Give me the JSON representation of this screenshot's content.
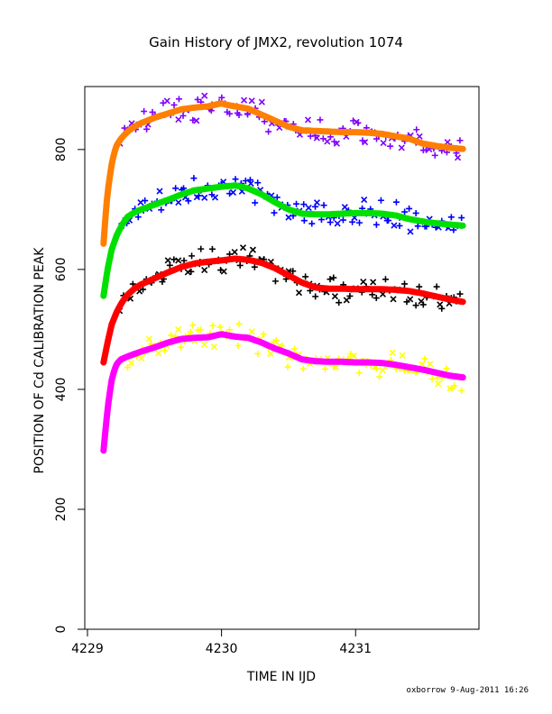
{
  "chart_data": {
    "type": "scatter",
    "title": "Gain History of JMX2, revolution 1074",
    "xlabel": "TIME IN IJD",
    "ylabel": "POSITION OF Cd CALIBRATION PEAK",
    "xlim": [
      4228.98,
      4231.92
    ],
    "ylim": [
      0,
      905
    ],
    "xticks": [
      4229,
      4230,
      4231
    ],
    "xtick_labels": [
      "4229",
      "4230",
      "4231"
    ],
    "yticks": [
      0,
      200,
      400,
      600,
      800
    ],
    "ytick_labels": [
      "0",
      "200",
      "400",
      "600",
      "800"
    ],
    "grid": false,
    "legend": "none",
    "footer": "oxborrow  9-Aug-2011 16:26",
    "series": [
      {
        "color": "#ff7f00",
        "kind": "smoothed-line",
        "x": [
          4229.12,
          4229.14,
          4229.16,
          4229.18,
          4229.2,
          4229.22,
          4229.25,
          4229.3,
          4229.35,
          4229.4,
          4229.5,
          4229.6,
          4229.7,
          4229.8,
          4229.9,
          4230.0,
          4230.05,
          4230.1,
          4230.2,
          4230.3,
          4230.4,
          4230.5,
          4230.6,
          4230.7,
          4230.8,
          4230.9,
          4231.0,
          4231.1,
          4231.2,
          4231.3,
          4231.4,
          4231.5,
          4231.6,
          4231.7,
          4231.8
        ],
        "y": [
          643,
          705,
          745,
          775,
          795,
          808,
          818,
          830,
          838,
          844,
          853,
          860,
          867,
          870,
          872,
          877,
          874,
          872,
          868,
          858,
          848,
          838,
          832,
          831,
          830,
          829,
          829,
          828,
          826,
          822,
          818,
          810,
          806,
          803,
          801
        ]
      },
      {
        "color": "#8000ff",
        "kind": "noisy-markers",
        "x": [
          4229.12,
          4229.14,
          4229.16,
          4229.18,
          4229.2,
          4229.22,
          4229.25,
          4229.3,
          4229.35,
          4229.4,
          4229.5,
          4229.6,
          4229.7,
          4229.8,
          4229.9,
          4230.0,
          4230.05,
          4230.1,
          4230.2,
          4230.3,
          4230.4,
          4230.5,
          4230.6,
          4230.7,
          4230.8,
          4230.9,
          4231.0,
          4231.1,
          4231.2,
          4231.3,
          4231.4,
          4231.5,
          4231.6,
          4231.7,
          4231.8
        ],
        "y": [
          643,
          705,
          745,
          775,
          795,
          808,
          818,
          830,
          838,
          844,
          853,
          860,
          867,
          870,
          872,
          877,
          874,
          872,
          868,
          858,
          848,
          838,
          832,
          831,
          830,
          829,
          829,
          828,
          826,
          822,
          818,
          810,
          806,
          803,
          801
        ]
      },
      {
        "color": "#00e000",
        "kind": "smoothed-line",
        "x": [
          4229.12,
          4229.15,
          4229.18,
          4229.22,
          4229.26,
          4229.3,
          4229.35,
          4229.4,
          4229.5,
          4229.6,
          4229.7,
          4229.8,
          4229.9,
          4230.0,
          4230.1,
          4230.15,
          4230.2,
          4230.3,
          4230.4,
          4230.5,
          4230.6,
          4230.7,
          4230.8,
          4230.9,
          4231.0,
          4231.1,
          4231.2,
          4231.3,
          4231.4,
          4231.5,
          4231.6,
          4231.7,
          4231.8
        ],
        "y": [
          556,
          600,
          633,
          658,
          675,
          688,
          695,
          700,
          708,
          716,
          725,
          732,
          735,
          738,
          740,
          738,
          735,
          725,
          712,
          700,
          693,
          692,
          692,
          693,
          694,
          694,
          693,
          690,
          684,
          680,
          677,
          675,
          673
        ]
      },
      {
        "color": "#0000ff",
        "kind": "noisy-markers",
        "x": [
          4229.12,
          4229.15,
          4229.18,
          4229.22,
          4229.26,
          4229.3,
          4229.35,
          4229.4,
          4229.5,
          4229.6,
          4229.7,
          4229.8,
          4229.9,
          4230.0,
          4230.1,
          4230.15,
          4230.2,
          4230.3,
          4230.4,
          4230.5,
          4230.6,
          4230.7,
          4230.8,
          4230.9,
          4231.0,
          4231.1,
          4231.2,
          4231.3,
          4231.4,
          4231.5,
          4231.6,
          4231.7,
          4231.8
        ],
        "y": [
          556,
          600,
          633,
          658,
          675,
          688,
          695,
          700,
          708,
          716,
          725,
          732,
          735,
          738,
          740,
          738,
          735,
          725,
          712,
          700,
          693,
          692,
          692,
          693,
          694,
          694,
          693,
          690,
          684,
          680,
          677,
          675,
          673
        ]
      },
      {
        "color": "#ff0000",
        "kind": "smoothed-line",
        "x": [
          4229.12,
          4229.15,
          4229.18,
          4229.22,
          4229.26,
          4229.3,
          4229.35,
          4229.4,
          4229.5,
          4229.6,
          4229.7,
          4229.8,
          4229.9,
          4230.0,
          4230.1,
          4230.2,
          4230.3,
          4230.4,
          4230.5,
          4230.6,
          4230.7,
          4230.8,
          4230.9,
          4231.0,
          4231.1,
          4231.2,
          4231.3,
          4231.4,
          4231.5,
          4231.6,
          4231.7,
          4231.8
        ],
        "y": [
          445,
          478,
          508,
          530,
          546,
          558,
          568,
          575,
          585,
          595,
          604,
          610,
          613,
          615,
          618,
          616,
          611,
          602,
          590,
          578,
          570,
          568,
          568,
          567,
          567,
          567,
          566,
          564,
          560,
          555,
          550,
          546
        ]
      },
      {
        "color": "#000000",
        "kind": "noisy-markers",
        "x": [
          4229.12,
          4229.15,
          4229.18,
          4229.22,
          4229.26,
          4229.3,
          4229.35,
          4229.4,
          4229.5,
          4229.6,
          4229.7,
          4229.8,
          4229.9,
          4230.0,
          4230.1,
          4230.2,
          4230.3,
          4230.4,
          4230.5,
          4230.6,
          4230.7,
          4230.8,
          4230.9,
          4231.0,
          4231.1,
          4231.2,
          4231.3,
          4231.4,
          4231.5,
          4231.6,
          4231.7,
          4231.8
        ],
        "y": [
          445,
          478,
          508,
          530,
          546,
          558,
          568,
          575,
          585,
          595,
          604,
          610,
          613,
          615,
          618,
          616,
          611,
          602,
          590,
          578,
          570,
          568,
          568,
          567,
          567,
          567,
          566,
          564,
          560,
          555,
          550,
          546
        ]
      },
      {
        "color": "#ff00ff",
        "kind": "smoothed-line",
        "x": [
          4229.12,
          4229.14,
          4229.16,
          4229.18,
          4229.2,
          4229.22,
          4229.25,
          4229.3,
          4229.4,
          4229.5,
          4229.6,
          4229.7,
          4229.8,
          4229.9,
          4230.0,
          4230.1,
          4230.2,
          4230.3,
          4230.4,
          4230.5,
          4230.6,
          4230.7,
          4230.8,
          4230.9,
          4231.0,
          4231.1,
          4231.2,
          4231.3,
          4231.4,
          4231.5,
          4231.6,
          4231.7,
          4231.8
        ],
        "y": [
          298,
          345,
          385,
          415,
          432,
          443,
          450,
          455,
          463,
          470,
          478,
          484,
          486,
          487,
          492,
          488,
          486,
          478,
          468,
          460,
          450,
          447,
          446,
          446,
          445,
          445,
          444,
          441,
          437,
          433,
          428,
          423,
          420
        ]
      },
      {
        "color": "#ffff00",
        "kind": "noisy-markers",
        "x": [
          4229.12,
          4229.14,
          4229.16,
          4229.18,
          4229.2,
          4229.22,
          4229.25,
          4229.3,
          4229.4,
          4229.5,
          4229.6,
          4229.7,
          4229.8,
          4229.9,
          4230.0,
          4230.1,
          4230.2,
          4230.3,
          4230.4,
          4230.5,
          4230.6,
          4230.7,
          4230.8,
          4230.9,
          4231.0,
          4231.1,
          4231.2,
          4231.3,
          4231.4,
          4231.5,
          4231.6,
          4231.7,
          4231.8
        ],
        "y": [
          298,
          345,
          385,
          415,
          432,
          443,
          450,
          455,
          463,
          470,
          478,
          484,
          486,
          487,
          492,
          488,
          486,
          478,
          468,
          460,
          450,
          447,
          446,
          446,
          445,
          445,
          444,
          441,
          437,
          433,
          428,
          423,
          420
        ]
      }
    ]
  }
}
